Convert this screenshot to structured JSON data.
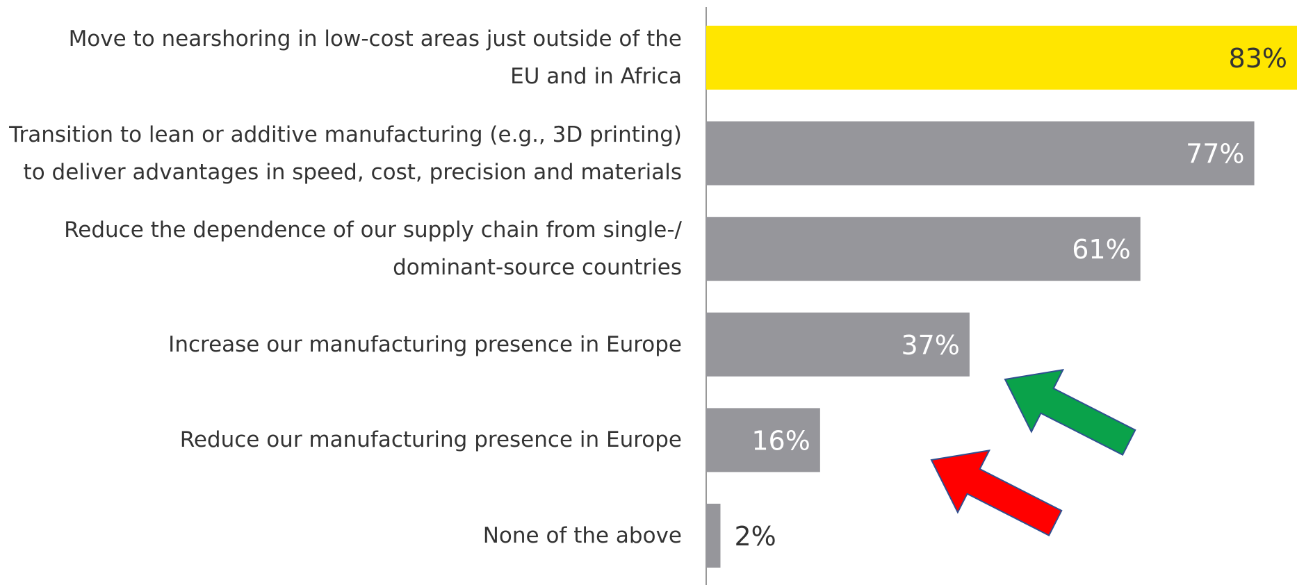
{
  "chart_data": {
    "type": "bar",
    "orientation": "horizontal",
    "categories": [
      [
        "Move to nearshoring in low-cost areas just outside of the",
        "EU and in Africa"
      ],
      [
        "Transition to lean or additive manufacturing (e.g., 3D printing)",
        "to deliver advantages in speed, cost, precision and materials"
      ],
      [
        "Reduce the dependence of our supply chain from single-/",
        "dominant-source countries"
      ],
      [
        "Increase our manufacturing presence in Europe"
      ],
      [
        "Reduce our manufacturing presence in Europe"
      ],
      [
        "None of the above"
      ]
    ],
    "values": [
      83,
      77,
      61,
      37,
      16,
      2
    ],
    "value_labels": [
      "83%",
      "77%",
      "61%",
      "37%",
      "16%",
      "2%"
    ],
    "xlim": [
      0,
      83
    ],
    "grid": false,
    "legend": "none",
    "colors": {
      "highlight": "#FFE600",
      "default": "#96969B",
      "axis": "#999999",
      "label_text": "#333333",
      "value_text_on_grey": "#FFFFFF",
      "value_text_on_yellow": "#333333"
    },
    "highlight_index": 0,
    "annotations": [
      {
        "type": "arrow",
        "color": "#0AA24A",
        "stroke": "#2F4F8F",
        "meaning": "points-to-increase-europe"
      },
      {
        "type": "arrow",
        "color": "#FF0000",
        "stroke": "#2F4F8F",
        "meaning": "points-to-reduce-europe"
      }
    ]
  }
}
